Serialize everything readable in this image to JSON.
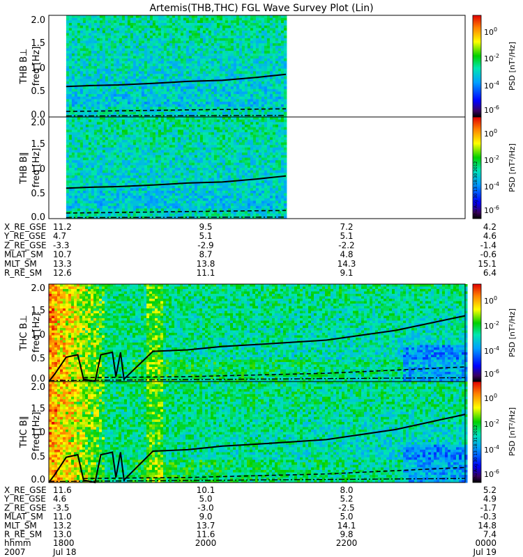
{
  "title": "Artemis(THB,THC) FGL Wave Survey Plot (Lin)",
  "colorbar": {
    "label": "PSD [nT²/Hz]",
    "ticks": [
      {
        "base": "10",
        "exp": "0"
      },
      {
        "base": "10",
        "exp": "-2"
      },
      {
        "base": "10",
        "exp": "-4"
      },
      {
        "base": "10",
        "exp": "-6"
      }
    ]
  },
  "stamps": [
    "Thu Aug 30 13:18:30 2012",
    "Thu Aug 30 13:18:31 2012"
  ],
  "ephem_row_labels_top": [
    "X_RE_GSE",
    "Y_RE_GSE",
    "Z_RE_GSE",
    "MLAT_SM",
    "MLT_SM",
    "R_RE_SM"
  ],
  "ephem_top": [
    [
      "11.2",
      "9.5",
      "7.2",
      "4.2"
    ],
    [
      "4.7",
      "5.1",
      "5.1",
      "4.6"
    ],
    [
      "-3.3",
      "-2.9",
      "-2.2",
      "-1.4"
    ],
    [
      "10.7",
      "8.7",
      "4.8",
      "-0.6"
    ],
    [
      "13.3",
      "13.8",
      "14.3",
      "15.1"
    ],
    [
      "12.6",
      "11.1",
      "9.1",
      "6.4"
    ]
  ],
  "ephem_row_labels_bottom": [
    "X_RE_GSE",
    "Y_RE_GSE",
    "Z_RE_GSE",
    "MLAT_SM",
    "MLT_SM",
    "R_RE_SM",
    "hhmm",
    "2007"
  ],
  "ephem_bottom": [
    [
      "11.6",
      "10.1",
      "8.0",
      "5.2"
    ],
    [
      "4.6",
      "5.0",
      "5.2",
      "4.9"
    ],
    [
      "-3.5",
      "-3.0",
      "-2.5",
      "-1.7"
    ],
    [
      "11.0",
      "9.0",
      "5.0",
      "-0.3"
    ],
    [
      "13.2",
      "13.7",
      "14.1",
      "14.8"
    ],
    [
      "13.0",
      "11.6",
      "9.8",
      "7.4"
    ],
    [
      "1800",
      "2000",
      "2200",
      "0000"
    ],
    [
      "Jul 18",
      "",
      "",
      "Jul 19"
    ]
  ],
  "chart_data": [
    {
      "type": "heatmap",
      "title": "Artemis(THB,THC) FGL Wave Survey Plot (Lin)",
      "ylabel": "THB B⊥  freq [Hz]",
      "ylim": [
        0,
        2.0
      ],
      "yticks": [
        "0.0",
        "0.5",
        "1.0",
        "1.5",
        "2.0"
      ],
      "xlim": [
        "1800",
        "0000"
      ],
      "data_span": [
        "~1815",
        "~2125"
      ],
      "colorbar_range_log10": [
        -7,
        1
      ],
      "overlay_solid_hz": [
        [
          1815,
          0.6
        ],
        [
          1840,
          0.62
        ],
        [
          1900,
          0.63
        ],
        [
          1930,
          0.66
        ],
        [
          2000,
          0.7
        ],
        [
          2030,
          0.72
        ],
        [
          2100,
          0.78
        ],
        [
          2125,
          0.84
        ]
      ],
      "overlay_dashed_hz": [
        [
          1815,
          0.11
        ],
        [
          1900,
          0.12
        ],
        [
          2000,
          0.14
        ],
        [
          2125,
          0.16
        ]
      ],
      "overlay_dotdash_hz": [
        [
          1815,
          0.02
        ],
        [
          2125,
          0.03
        ]
      ]
    },
    {
      "type": "heatmap",
      "ylabel": "THB B∥  freq [Hz]",
      "ylim": [
        0,
        2.0
      ],
      "yticks": [
        "0.0",
        "0.5",
        "1.0",
        "1.5",
        "2.0"
      ],
      "colorbar_range_log10": [
        -7,
        1
      ],
      "overlay_solid_hz": [
        [
          1815,
          0.6
        ],
        [
          1840,
          0.62
        ],
        [
          1900,
          0.63
        ],
        [
          1930,
          0.66
        ],
        [
          2000,
          0.7
        ],
        [
          2030,
          0.72
        ],
        [
          2100,
          0.78
        ],
        [
          2125,
          0.84
        ]
      ],
      "overlay_dashed_hz": [
        [
          1815,
          0.11
        ],
        [
          1900,
          0.12
        ],
        [
          2000,
          0.14
        ],
        [
          2125,
          0.16
        ]
      ],
      "overlay_dotdash_hz": [
        [
          1815,
          0.02
        ],
        [
          2125,
          0.03
        ]
      ]
    },
    {
      "type": "heatmap",
      "ylabel": "THC B⊥  freq [Hz]",
      "ylim": [
        0,
        2.0
      ],
      "yticks": [
        "0.0",
        "0.5",
        "1.0",
        "1.5",
        "2.0"
      ],
      "colorbar_range_log10": [
        -7,
        1
      ],
      "overlay_solid_hz": [
        [
          1800,
          0.0
        ],
        [
          1805,
          0.15
        ],
        [
          1815,
          0.5
        ],
        [
          1825,
          0.55
        ],
        [
          1830,
          0.05
        ],
        [
          1840,
          0.0
        ],
        [
          1845,
          0.55
        ],
        [
          1855,
          0.6
        ],
        [
          1858,
          0.1
        ],
        [
          1902,
          0.6
        ],
        [
          1905,
          0.05
        ],
        [
          1930,
          0.62
        ],
        [
          2000,
          0.65
        ],
        [
          2030,
          0.72
        ],
        [
          2100,
          0.76
        ],
        [
          2200,
          0.85
        ],
        [
          2300,
          1.05
        ],
        [
          2330,
          1.2
        ],
        [
          2400,
          1.35
        ]
      ],
      "overlay_dashed_hz": [
        [
          1830,
          0.08
        ],
        [
          2000,
          0.1
        ],
        [
          2200,
          0.17
        ],
        [
          2400,
          0.3
        ]
      ],
      "overlay_dotdash_hz": [
        [
          1800,
          0.02
        ],
        [
          2400,
          0.08
        ]
      ]
    },
    {
      "type": "heatmap",
      "ylabel": "THC B∥  freq [Hz]",
      "ylim": [
        0,
        2.0
      ],
      "yticks": [
        "0.0",
        "0.5",
        "1.0",
        "1.5",
        "2.0"
      ],
      "colorbar_range_log10": [
        -7,
        1
      ],
      "overlay_solid_hz": [
        [
          1800,
          0.0
        ],
        [
          1805,
          0.15
        ],
        [
          1815,
          0.5
        ],
        [
          1825,
          0.55
        ],
        [
          1830,
          0.05
        ],
        [
          1840,
          0.0
        ],
        [
          1845,
          0.55
        ],
        [
          1855,
          0.6
        ],
        [
          1858,
          0.1
        ],
        [
          1902,
          0.6
        ],
        [
          1905,
          0.05
        ],
        [
          1930,
          0.62
        ],
        [
          2000,
          0.65
        ],
        [
          2030,
          0.72
        ],
        [
          2100,
          0.76
        ],
        [
          2200,
          0.85
        ],
        [
          2300,
          1.05
        ],
        [
          2330,
          1.2
        ],
        [
          2400,
          1.35
        ]
      ],
      "overlay_dashed_hz": [
        [
          1830,
          0.08
        ],
        [
          2000,
          0.1
        ],
        [
          2200,
          0.17
        ],
        [
          2400,
          0.3
        ]
      ],
      "overlay_dotdash_hz": [
        [
          1800,
          0.02
        ],
        [
          2400,
          0.08
        ]
      ]
    }
  ]
}
